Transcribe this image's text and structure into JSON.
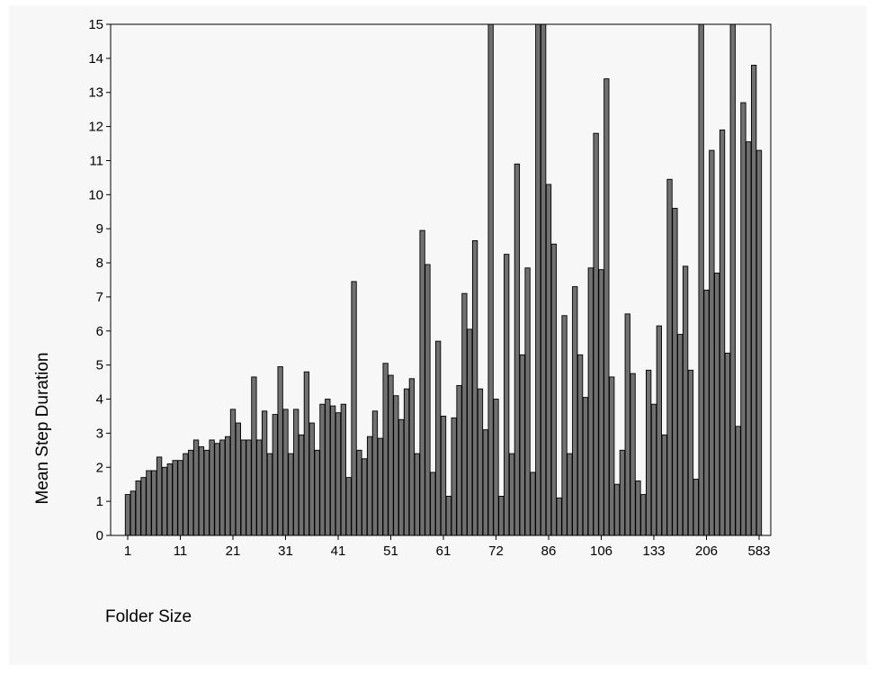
{
  "chart_data": {
    "type": "bar",
    "title": "",
    "xlabel": "Folder Size",
    "ylabel": "Mean Step Duration",
    "ylim": [
      0,
      15
    ],
    "yticks": [
      0,
      1,
      2,
      3,
      4,
      5,
      6,
      7,
      8,
      9,
      10,
      11,
      12,
      13,
      14,
      15
    ],
    "xtick_labels": [
      "1",
      "11",
      "21",
      "31",
      "41",
      "51",
      "61",
      "72",
      "86",
      "106",
      "133",
      "206",
      "583"
    ],
    "xtick_positions": [
      0,
      10,
      20,
      30,
      40,
      50,
      60,
      70,
      80,
      90,
      100,
      110,
      120
    ],
    "grid": false,
    "legend": "none",
    "bar_color": "#707070",
    "values": [
      1.2,
      1.3,
      1.6,
      1.7,
      1.9,
      1.9,
      2.3,
      2.0,
      2.1,
      2.2,
      2.2,
      2.4,
      2.5,
      2.8,
      2.6,
      2.5,
      2.8,
      2.7,
      2.8,
      2.9,
      3.7,
      3.3,
      2.8,
      2.8,
      4.65,
      2.8,
      3.65,
      2.4,
      3.55,
      4.95,
      3.7,
      2.4,
      3.7,
      2.95,
      4.8,
      3.3,
      2.5,
      3.85,
      4.0,
      3.8,
      3.6,
      3.85,
      1.7,
      7.45,
      2.5,
      2.25,
      2.9,
      3.65,
      2.85,
      5.05,
      4.7,
      4.1,
      3.4,
      4.3,
      4.6,
      2.4,
      8.95,
      7.95,
      1.85,
      5.7,
      3.5,
      1.15,
      3.45,
      4.4,
      7.1,
      6.05,
      8.65,
      4.3,
      3.1,
      15,
      4.0,
      1.15,
      8.25,
      2.4,
      10.9,
      5.3,
      7.85,
      1.85,
      15,
      15,
      10.3,
      8.55,
      1.1,
      6.45,
      2.4,
      7.3,
      5.3,
      4.05,
      7.85,
      11.8,
      7.8,
      13.4,
      4.65,
      1.5,
      2.5,
      6.5,
      4.75,
      1.6,
      1.2,
      4.85,
      3.85,
      6.15,
      2.95,
      10.45,
      9.6,
      5.9,
      7.9,
      4.85,
      1.65,
      15,
      7.2,
      11.3,
      7.7,
      11.9,
      5.35,
      15,
      3.2,
      12.7,
      11.55,
      13.8,
      11.3
    ]
  }
}
